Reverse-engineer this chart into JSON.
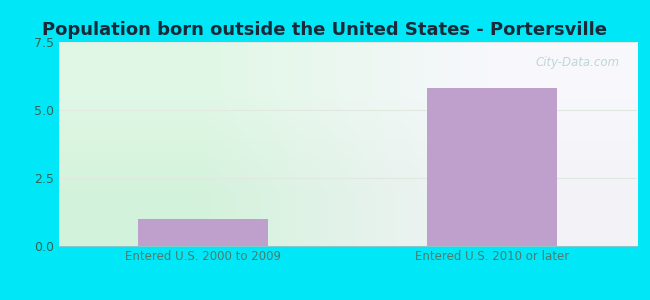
{
  "title": "Population born outside the United States - Portersville",
  "categories": [
    "Entered U.S. 2000 to 2009",
    "Entered U.S. 2010 or later"
  ],
  "values": [
    1.0,
    5.8
  ],
  "bar_color": "#bf9fcc",
  "ylim": [
    0,
    7.5
  ],
  "yticks": [
    0,
    2.5,
    5,
    7.5
  ],
  "background_outer": "#00e8f8",
  "title_fontsize": 13,
  "tick_label_color": "#336655",
  "xlabel_color": "#4a7a6a",
  "grid_color": "#ccddcc",
  "watermark": "City-Data.com"
}
